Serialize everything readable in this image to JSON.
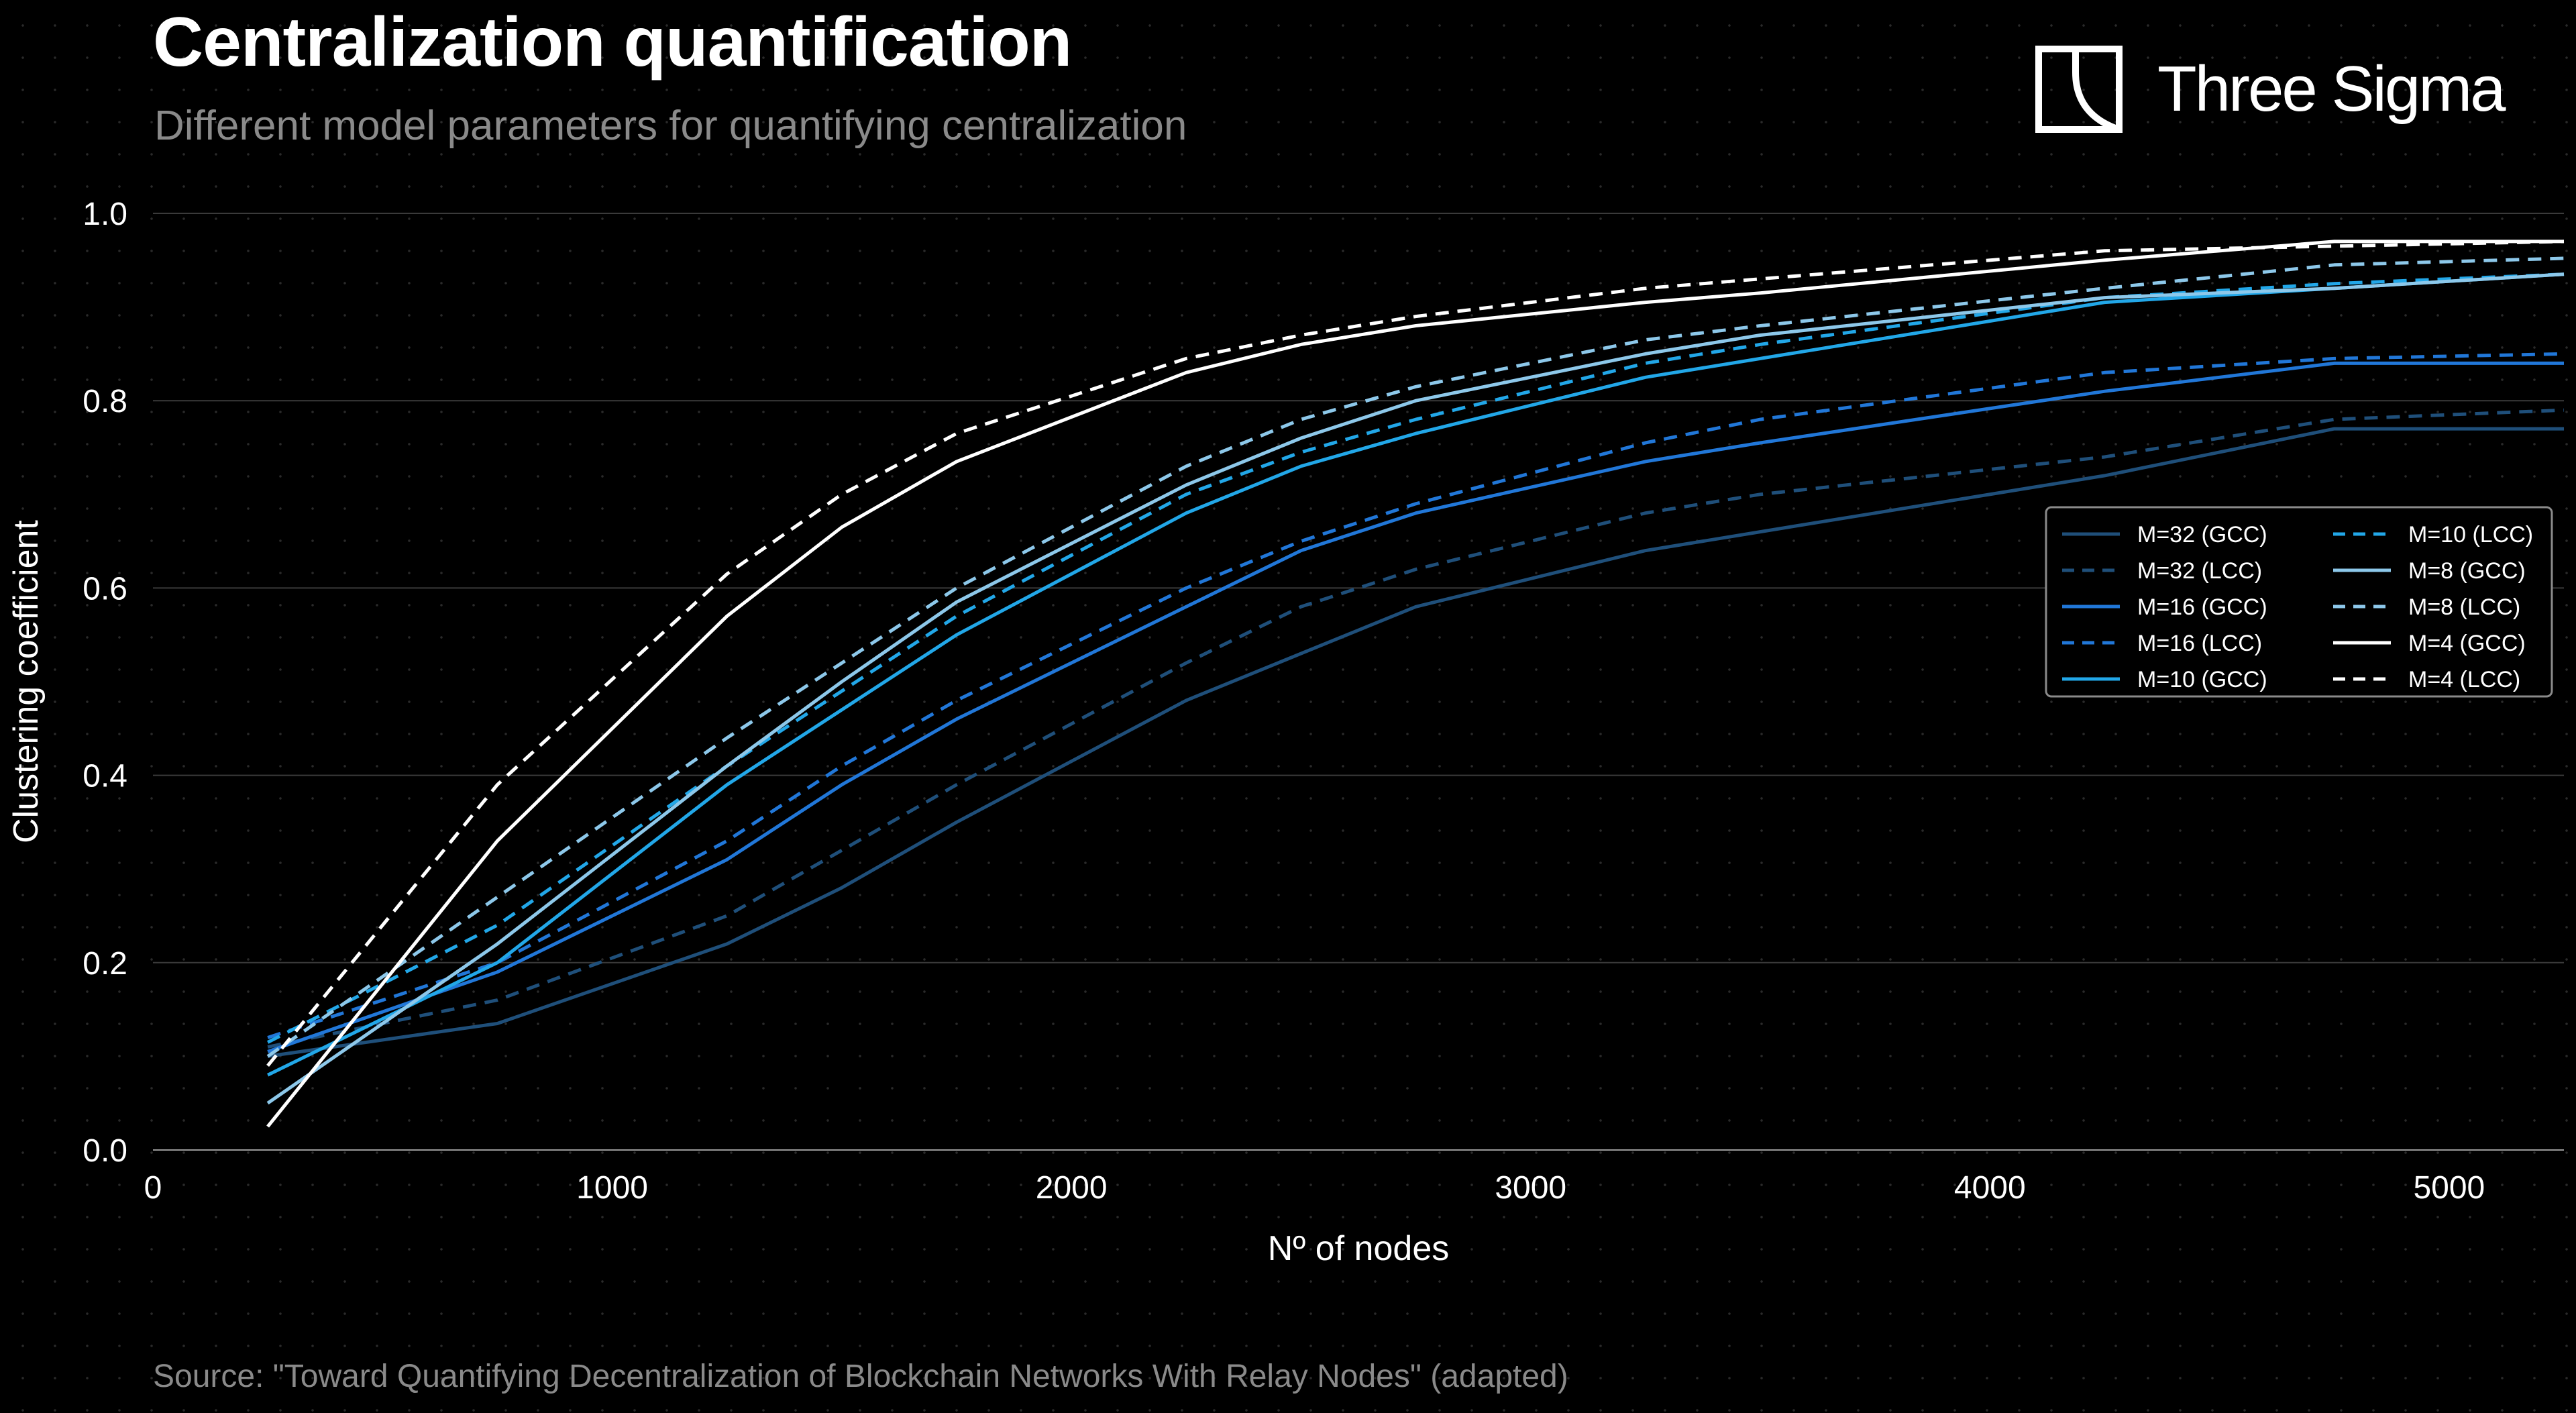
{
  "header": {
    "title": "Centralization quantification",
    "subtitle": "Different model parameters for quantifying centralization"
  },
  "brand": {
    "name": "Three Sigma"
  },
  "footer": {
    "source": "Source: \"Toward Quantifying Decentralization of Blockchain Networks With Relay Nodes\" (adapted)"
  },
  "chart_data": {
    "type": "line",
    "title": "Centralization quantification",
    "subtitle": "Different model parameters for quantifying centralization",
    "xlabel": "Nº of nodes",
    "ylabel": "Clustering coefficient",
    "xlim": [
      0,
      5250
    ],
    "ylim": [
      0,
      1.0
    ],
    "xticks": [
      0,
      1000,
      2000,
      3000,
      4000,
      5000
    ],
    "xtick_labels": [
      "0",
      "1000",
      "2000",
      "3000",
      "4000",
      "5000"
    ],
    "yticks": [
      0.0,
      0.2,
      0.4,
      0.6,
      0.8,
      1.0
    ],
    "ytick_labels": [
      "0.0",
      "0.2",
      "0.4",
      "0.6",
      "0.8",
      "1.0"
    ],
    "grid": "horizontal",
    "legend_position": "right",
    "x": [
      250,
      750,
      1250,
      1500,
      1750,
      2250,
      2500,
      2750,
      3250,
      3500,
      4250,
      4750,
      5250
    ],
    "series": [
      {
        "name": "M=32 (GCC)",
        "color": "#1f4f7a",
        "style": "solid",
        "values": [
          0.1,
          0.135,
          0.22,
          0.28,
          0.35,
          0.48,
          0.53,
          0.58,
          0.64,
          0.66,
          0.72,
          0.77,
          0.77
        ]
      },
      {
        "name": "M=32 (LCC)",
        "color": "#1f4f7a",
        "style": "dashed",
        "values": [
          0.11,
          0.16,
          0.25,
          0.32,
          0.39,
          0.52,
          0.58,
          0.62,
          0.68,
          0.7,
          0.74,
          0.78,
          0.79
        ]
      },
      {
        "name": "M=16 (GCC)",
        "color": "#2177d8",
        "style": "solid",
        "values": [
          0.105,
          0.19,
          0.31,
          0.39,
          0.46,
          0.58,
          0.64,
          0.68,
          0.735,
          0.755,
          0.81,
          0.84,
          0.84
        ]
      },
      {
        "name": "M=16 (LCC)",
        "color": "#2177d8",
        "style": "dashed",
        "values": [
          0.12,
          0.2,
          0.33,
          0.41,
          0.48,
          0.6,
          0.65,
          0.69,
          0.755,
          0.78,
          0.83,
          0.845,
          0.85
        ]
      },
      {
        "name": "M=10 (GCC)",
        "color": "#22a7e8",
        "style": "solid",
        "values": [
          0.08,
          0.2,
          0.39,
          0.47,
          0.55,
          0.68,
          0.73,
          0.765,
          0.825,
          0.845,
          0.905,
          0.92,
          0.935
        ]
      },
      {
        "name": "M=10 (LCC)",
        "color": "#22a7e8",
        "style": "dashed",
        "values": [
          0.115,
          0.24,
          0.41,
          0.49,
          0.57,
          0.7,
          0.745,
          0.78,
          0.84,
          0.86,
          0.91,
          0.925,
          0.935
        ]
      },
      {
        "name": "M=8 (GCC)",
        "color": "#8dc8ea",
        "style": "solid",
        "values": [
          0.05,
          0.22,
          0.41,
          0.5,
          0.585,
          0.71,
          0.76,
          0.8,
          0.85,
          0.87,
          0.91,
          0.92,
          0.935
        ]
      },
      {
        "name": "M=8 (LCC)",
        "color": "#8dc8ea",
        "style": "dashed",
        "values": [
          0.1,
          0.27,
          0.44,
          0.52,
          0.6,
          0.73,
          0.78,
          0.815,
          0.865,
          0.88,
          0.92,
          0.945,
          0.952
        ]
      },
      {
        "name": "M=4 (GCC)",
        "color": "#ffffff",
        "style": "solid",
        "values": [
          0.025,
          0.33,
          0.57,
          0.665,
          0.735,
          0.83,
          0.86,
          0.88,
          0.905,
          0.915,
          0.95,
          0.97,
          0.97
        ]
      },
      {
        "name": "M=4 (LCC)",
        "color": "#ffffff",
        "style": "dashed",
        "values": [
          0.09,
          0.39,
          0.615,
          0.7,
          0.765,
          0.845,
          0.87,
          0.89,
          0.92,
          0.93,
          0.96,
          0.965,
          0.97
        ]
      }
    ]
  }
}
